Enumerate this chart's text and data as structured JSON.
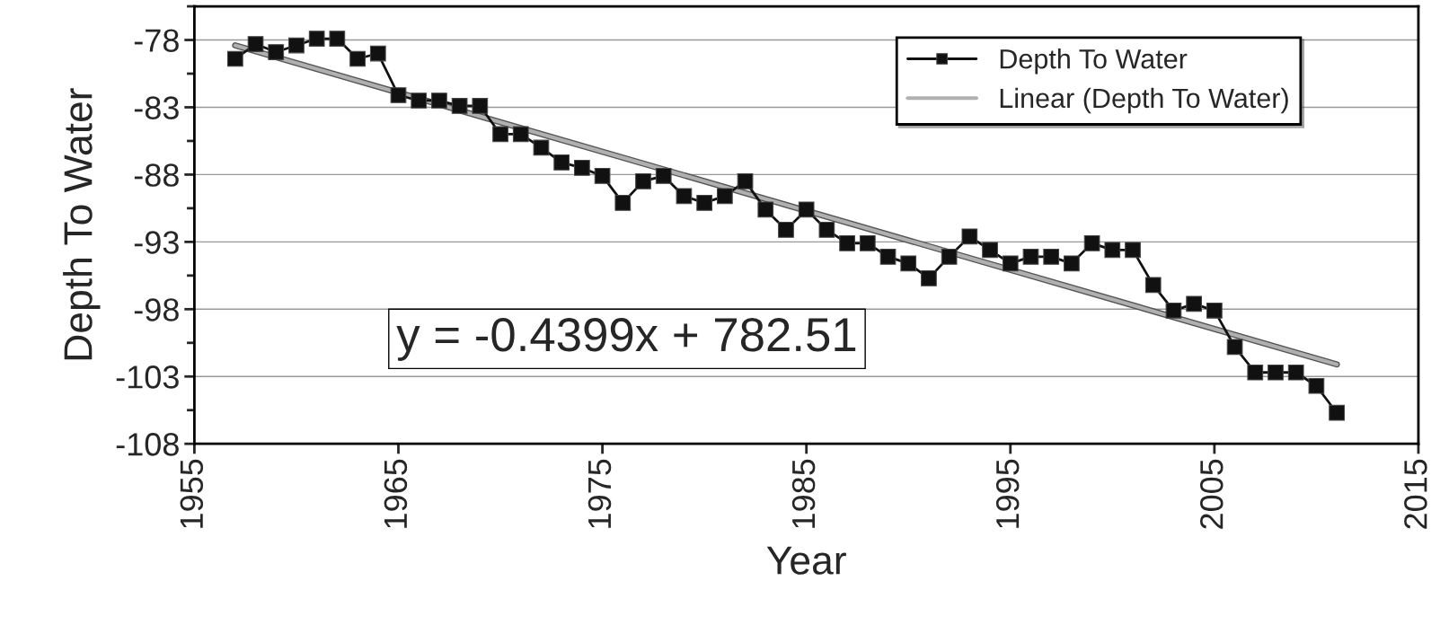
{
  "chart_data": {
    "type": "line",
    "xlabel": "Year",
    "ylabel": "Depth To Water",
    "x": [
      1957,
      1958,
      1959,
      1960,
      1961,
      1962,
      1963,
      1964,
      1965,
      1966,
      1967,
      1968,
      1969,
      1970,
      1971,
      1972,
      1973,
      1974,
      1975,
      1976,
      1977,
      1978,
      1979,
      1980,
      1981,
      1982,
      1983,
      1984,
      1985,
      1986,
      1987,
      1988,
      1989,
      1990,
      1991,
      1992,
      1993,
      1994,
      1995,
      1996,
      1997,
      1998,
      1999,
      2000,
      2001,
      2002,
      2003,
      2004,
      2005,
      2006,
      2007,
      2008,
      2009,
      2010,
      2011
    ],
    "series": [
      {
        "name": "Depth To Water",
        "color": "#111111",
        "marker": "square",
        "line_style": "solid",
        "values": [
          -79.4,
          -78.3,
          -78.9,
          -78.4,
          -77.9,
          -77.9,
          -79.4,
          -79.0,
          -82.1,
          -82.5,
          -82.5,
          -82.9,
          -82.9,
          -85.0,
          -85.0,
          -86.0,
          -87.1,
          -87.5,
          -88.1,
          -90.1,
          -88.5,
          -88.1,
          -89.6,
          -90.1,
          -89.6,
          -88.5,
          -90.6,
          -92.1,
          -90.6,
          -92.1,
          -93.1,
          -93.1,
          -94.1,
          -94.6,
          -95.7,
          -94.1,
          -92.6,
          -93.6,
          -94.6,
          -94.1,
          -94.1,
          -94.6,
          -93.1,
          -93.6,
          -93.6,
          -96.2,
          -98.1,
          -97.6,
          -98.1,
          -100.8,
          -102.7,
          -102.7,
          -102.7,
          -103.7,
          -105.7
        ]
      },
      {
        "name": "Linear (Depth To Water)",
        "type": "line",
        "color": "#b0b0b0",
        "marker": "none",
        "line_style": "solid",
        "x": [
          1957,
          2011
        ],
        "values": [
          -78.4,
          -102.1
        ]
      }
    ],
    "annotations": [
      "y = -0.4399x + 782.51"
    ],
    "xlim": [
      1955,
      2015
    ],
    "xticks": [
      1955,
      1965,
      1975,
      1985,
      1995,
      2005,
      2015
    ],
    "ylim": [
      -108,
      -75.5
    ],
    "yticks": [
      -108,
      -103,
      -98,
      -93,
      -88,
      -83,
      -78
    ],
    "grid": "y",
    "legend": "top right"
  }
}
